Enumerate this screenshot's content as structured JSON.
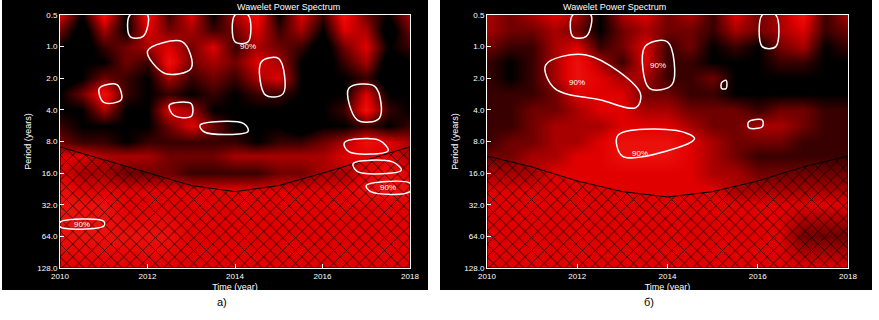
{
  "chart_data": [
    {
      "type": "heatmap",
      "title": "Wawelet Power Spectrum",
      "caption": "а)",
      "x_label": "Time (year)",
      "y_label": "Period (years)",
      "log": "y",
      "grid": false,
      "xlim": [
        2010,
        2018
      ],
      "xticks": [
        2010,
        2012,
        2014,
        2016,
        2018
      ],
      "ylim": [
        0.5,
        128
      ],
      "yticks": [
        0.5,
        {
          "value": 1,
          "label": "1.0"
        },
        {
          "value": 2,
          "label": "2.0"
        },
        {
          "value": 4,
          "label": "4.0"
        },
        {
          "value": 8,
          "label": "8.0"
        },
        {
          "value": 16,
          "label": "16.0"
        },
        {
          "value": 32,
          "label": "32.0"
        },
        {
          "value": 64,
          "label": "64.0"
        },
        {
          "value": 128,
          "label": "128.0"
        }
      ],
      "zlim": [
        0,
        1
      ],
      "x": [
        2010,
        2010.5,
        2011,
        2011.5,
        2012,
        2012.5,
        2013,
        2013.5,
        2014,
        2014.5,
        2015,
        2015.5,
        2016,
        2016.5,
        2017,
        2017.5,
        2018
      ],
      "y": [
        0.5,
        0.7,
        1,
        1.4,
        2,
        2.8,
        4,
        5.7,
        8,
        11,
        16,
        23,
        32,
        64,
        128
      ],
      "z": [
        [
          0.7,
          0.3,
          0.8,
          0.3,
          0.8,
          0.4,
          0.7,
          0.3,
          0.6,
          0.8,
          0.3,
          0.7,
          0.4,
          0.8,
          0.5,
          0.3,
          0.6
        ],
        [
          0.5,
          0.2,
          0.6,
          0.3,
          0.7,
          0.5,
          0.6,
          0.4,
          0.5,
          0.7,
          0.4,
          0.6,
          0.3,
          0.7,
          0.6,
          0.2,
          0.5
        ],
        [
          0.3,
          0.2,
          0.4,
          0.5,
          0.6,
          0.7,
          0.5,
          0.7,
          0.4,
          0.6,
          0.5,
          0.4,
          0.2,
          0.5,
          0.7,
          0.3,
          0.4
        ],
        [
          0.2,
          0.3,
          0.3,
          0.5,
          0.4,
          0.8,
          0.5,
          0.6,
          0.5,
          0.7,
          0.6,
          0.3,
          0.2,
          0.4,
          0.6,
          0.2,
          0.3
        ],
        [
          0.2,
          0.3,
          0.5,
          0.4,
          0.3,
          0.6,
          0.4,
          0.5,
          0.4,
          0.6,
          0.7,
          0.3,
          0.3,
          0.3,
          0.4,
          0.2,
          0.3
        ],
        [
          0.3,
          0.5,
          0.8,
          0.4,
          0.3,
          0.4,
          0.3,
          0.4,
          0.3,
          0.4,
          0.4,
          0.3,
          0.3,
          0.3,
          0.7,
          0.3,
          0.3
        ],
        [
          0.3,
          0.3,
          0.6,
          0.3,
          0.3,
          0.7,
          0.6,
          0.3,
          0.3,
          0.3,
          0.3,
          0.2,
          0.3,
          0.4,
          0.8,
          0.4,
          0.3
        ],
        [
          0.4,
          0.3,
          0.3,
          0.3,
          0.3,
          0.5,
          0.7,
          0.5,
          0.3,
          0.3,
          0.3,
          0.2,
          0.3,
          0.3,
          0.4,
          0.3,
          0.4
        ],
        [
          0.5,
          0.4,
          0.4,
          0.3,
          0.4,
          0.4,
          0.4,
          0.4,
          0.4,
          0.3,
          0.4,
          0.4,
          0.5,
          0.6,
          0.8,
          0.7,
          0.6
        ],
        [
          0.7,
          0.7,
          0.6,
          0.6,
          0.6,
          0.5,
          0.5,
          0.5,
          0.6,
          0.6,
          0.6,
          0.6,
          0.6,
          0.7,
          0.7,
          0.7,
          0.6
        ],
        [
          0.7,
          0.6,
          0.6,
          0.5,
          0.5,
          0.5,
          0.4,
          0.4,
          0.4,
          0.4,
          0.5,
          0.5,
          0.6,
          0.6,
          0.7,
          0.8,
          0.7
        ],
        [
          0.8,
          0.7,
          0.7,
          0.7,
          0.7,
          0.7,
          0.7,
          0.7,
          0.7,
          0.7,
          0.7,
          0.7,
          0.7,
          0.7,
          0.8,
          0.8,
          0.8
        ],
        [
          0.8,
          0.8,
          0.8,
          0.7,
          0.7,
          0.7,
          0.7,
          0.7,
          0.7,
          0.7,
          0.7,
          0.7,
          0.7,
          0.7,
          0.7,
          0.7,
          0.7
        ],
        [
          0.8,
          0.8,
          0.8,
          0.8,
          0.8,
          0.8,
          0.7,
          0.7,
          0.7,
          0.7,
          0.7,
          0.7,
          0.7,
          0.7,
          0.7,
          0.7,
          0.7
        ],
        [
          0.7,
          0.7,
          0.7,
          0.7,
          0.7,
          0.7,
          0.7,
          0.7,
          0.7,
          0.7,
          0.7,
          0.7,
          0.7,
          0.7,
          0.7,
          0.7,
          0.7
        ]
      ],
      "coi": {
        "x": [
          2010,
          2011,
          2012,
          2013,
          2014,
          2015,
          2016,
          2017,
          2018
        ],
        "y": [
          9,
          12,
          16,
          21,
          24,
          21,
          16,
          12,
          9
        ]
      },
      "significance": [
        [
          [
            2010.9,
            2.5
          ],
          [
            2011.3,
            2.3
          ],
          [
            2011.4,
            3.2
          ],
          [
            2011.0,
            3.4
          ],
          [
            2010.9,
            2.5
          ]
        ],
        [
          [
            2012.0,
            1.1
          ],
          [
            2012.8,
            0.9
          ],
          [
            2013.0,
            1.6
          ],
          [
            2012.4,
            1.8
          ],
          [
            2012.0,
            1.1
          ]
        ],
        [
          [
            2014.6,
            1.4
          ],
          [
            2015.0,
            1.3
          ],
          [
            2015.1,
            2.8
          ],
          [
            2014.7,
            2.9
          ],
          [
            2014.6,
            1.4
          ]
        ],
        [
          [
            2016.6,
            2.5
          ],
          [
            2017.2,
            2.4
          ],
          [
            2017.3,
            4.8
          ],
          [
            2016.8,
            5.0
          ],
          [
            2016.6,
            2.5
          ]
        ],
        [
          [
            2012.5,
            3.6
          ],
          [
            2013.0,
            3.5
          ],
          [
            2013.0,
            4.6
          ],
          [
            2012.6,
            4.5
          ],
          [
            2012.5,
            3.6
          ]
        ],
        [
          [
            2013.2,
            5.6
          ],
          [
            2014.2,
            5.4
          ],
          [
            2014.3,
            6.4
          ],
          [
            2013.3,
            6.5
          ],
          [
            2013.2,
            5.6
          ]
        ],
        [
          [
            2016.5,
            8.2
          ],
          [
            2017.3,
            7.8
          ],
          [
            2017.5,
            9.8
          ],
          [
            2016.6,
            10.0
          ],
          [
            2016.5,
            8.2
          ]
        ],
        [
          [
            2016.7,
            13
          ],
          [
            2017.6,
            12.5
          ],
          [
            2017.8,
            15
          ],
          [
            2016.8,
            15.5
          ],
          [
            2016.7,
            13
          ]
        ],
        [
          [
            2017.0,
            21
          ],
          [
            2018,
            20
          ],
          [
            2018,
            24
          ],
          [
            2017.1,
            24
          ],
          [
            2017.0,
            21
          ]
        ],
        [
          [
            2010,
            47
          ],
          [
            2011,
            46
          ],
          [
            2011,
            51
          ],
          [
            2010,
            52
          ],
          [
            2010,
            47
          ]
        ],
        [
          [
            2011.6,
            0.5
          ],
          [
            2012.0,
            0.5
          ],
          [
            2011.9,
            0.8
          ],
          [
            2011.6,
            0.8
          ],
          [
            2011.6,
            0.5
          ]
        ],
        [
          [
            2014.0,
            0.5
          ],
          [
            2014.3,
            0.5
          ],
          [
            2014.3,
            0.9
          ],
          [
            2014.0,
            0.9
          ],
          [
            2014.0,
            0.5
          ]
        ]
      ],
      "annotations": [
        {
          "text": "90%",
          "x": 2017.5,
          "y": 22
        },
        {
          "text": "90%",
          "x": 2010.5,
          "y": 49
        },
        {
          "text": "90%",
          "x": 2014.3,
          "y": 1.0
        }
      ]
    },
    {
      "type": "heatmap",
      "title": "Wawelet Power Spectrum",
      "caption": "б)",
      "x_label": "Time (year)",
      "y_label": "Period (years)",
      "log": "y",
      "grid": false,
      "xlim": [
        2010,
        2018
      ],
      "xticks": [
        2010,
        2012,
        2014,
        2016,
        2018
      ],
      "ylim": [
        0.5,
        128
      ],
      "yticks": [
        0.5,
        {
          "value": 1,
          "label": "1.0"
        },
        {
          "value": 2,
          "label": "2.0"
        },
        {
          "value": 4,
          "label": "4.0"
        },
        {
          "value": 8,
          "label": "8.0"
        },
        {
          "value": 16,
          "label": "16.0"
        },
        {
          "value": 32,
          "label": "32.0"
        },
        {
          "value": 64,
          "label": "64.0"
        },
        {
          "value": 128,
          "label": "128.0"
        }
      ],
      "zlim": [
        0,
        1
      ],
      "x": [
        2010,
        2010.5,
        2011,
        2011.5,
        2012,
        2012.5,
        2013,
        2013.5,
        2014,
        2014.5,
        2015,
        2015.5,
        2016,
        2016.5,
        2017,
        2017.5,
        2018
      ],
      "y": [
        0.5,
        0.7,
        1,
        1.4,
        2,
        2.8,
        4,
        5.7,
        8,
        11,
        16,
        23,
        32,
        64,
        128
      ],
      "z": [
        [
          0.6,
          0.5,
          0.6,
          0.7,
          0.6,
          0.3,
          0.6,
          0.7,
          0.5,
          0.6,
          0.4,
          0.7,
          0.5,
          0.6,
          0.8,
          0.4,
          0.6
        ],
        [
          0.6,
          0.5,
          0.5,
          0.6,
          0.5,
          0.3,
          0.5,
          0.6,
          0.5,
          0.5,
          0.4,
          0.6,
          0.5,
          0.6,
          0.7,
          0.4,
          0.5
        ],
        [
          0.5,
          0.4,
          0.4,
          0.6,
          0.7,
          0.4,
          0.5,
          0.7,
          0.4,
          0.5,
          0.3,
          0.4,
          0.3,
          0.5,
          0.6,
          0.3,
          0.4
        ],
        [
          0.4,
          0.3,
          0.4,
          0.6,
          0.8,
          0.6,
          0.4,
          0.7,
          0.4,
          0.4,
          0.3,
          0.3,
          0.3,
          0.4,
          0.4,
          0.3,
          0.3
        ],
        [
          0.4,
          0.3,
          0.4,
          0.6,
          0.8,
          0.7,
          0.6,
          0.6,
          0.4,
          0.4,
          0.5,
          0.3,
          0.3,
          0.3,
          0.3,
          0.3,
          0.3
        ],
        [
          0.4,
          0.4,
          0.4,
          0.5,
          0.7,
          0.7,
          0.7,
          0.5,
          0.5,
          0.4,
          0.4,
          0.3,
          0.3,
          0.3,
          0.3,
          0.3,
          0.3
        ],
        [
          0.4,
          0.4,
          0.5,
          0.5,
          0.6,
          0.7,
          0.7,
          0.6,
          0.6,
          0.5,
          0.5,
          0.5,
          0.4,
          0.5,
          0.5,
          0.4,
          0.4
        ],
        [
          0.4,
          0.4,
          0.5,
          0.6,
          0.6,
          0.6,
          0.7,
          0.7,
          0.7,
          0.6,
          0.5,
          0.5,
          0.6,
          0.6,
          0.5,
          0.4,
          0.4
        ],
        [
          0.4,
          0.5,
          0.5,
          0.6,
          0.6,
          0.7,
          0.8,
          0.8,
          0.8,
          0.7,
          0.6,
          0.5,
          0.5,
          0.5,
          0.4,
          0.4,
          0.4
        ],
        [
          0.5,
          0.5,
          0.6,
          0.6,
          0.7,
          0.7,
          0.8,
          0.8,
          0.8,
          0.7,
          0.6,
          0.5,
          0.4,
          0.4,
          0.4,
          0.4,
          0.4
        ],
        [
          0.6,
          0.6,
          0.6,
          0.7,
          0.7,
          0.7,
          0.7,
          0.7,
          0.7,
          0.7,
          0.6,
          0.6,
          0.5,
          0.5,
          0.5,
          0.5,
          0.5
        ],
        [
          0.7,
          0.7,
          0.7,
          0.7,
          0.7,
          0.7,
          0.7,
          0.7,
          0.7,
          0.7,
          0.7,
          0.6,
          0.6,
          0.6,
          0.6,
          0.6,
          0.6
        ],
        [
          0.7,
          0.7,
          0.7,
          0.7,
          0.7,
          0.7,
          0.7,
          0.7,
          0.7,
          0.7,
          0.7,
          0.7,
          0.7,
          0.7,
          0.7,
          0.7,
          0.7
        ],
        [
          0.7,
          0.7,
          0.7,
          0.7,
          0.7,
          0.7,
          0.7,
          0.7,
          0.7,
          0.7,
          0.7,
          0.7,
          0.7,
          0.7,
          0.5,
          0.5,
          0.5
        ],
        [
          0.7,
          0.7,
          0.7,
          0.7,
          0.7,
          0.7,
          0.7,
          0.7,
          0.7,
          0.7,
          0.7,
          0.7,
          0.7,
          0.7,
          0.7,
          0.7,
          0.7
        ]
      ],
      "coi": {
        "x": [
          2010,
          2011,
          2012,
          2013,
          2014,
          2015,
          2016,
          2017,
          2018
        ],
        "y": [
          11,
          14,
          19,
          24,
          27,
          24,
          19,
          14,
          11
        ]
      },
      "significance": [
        [
          [
            2011.3,
            1.5
          ],
          [
            2012.2,
            1.2
          ],
          [
            2013.4,
            2.8
          ],
          [
            2013.3,
            3.8
          ],
          [
            2012.5,
            3.2
          ],
          [
            2011.5,
            2.5
          ],
          [
            2011.3,
            1.5
          ]
        ],
        [
          [
            2013.5,
            1.0
          ],
          [
            2014.0,
            0.9
          ],
          [
            2014.1,
            2.3
          ],
          [
            2013.6,
            2.5
          ],
          [
            2013.5,
            1.0
          ]
        ],
        [
          [
            2012.9,
            7.0
          ],
          [
            2014.2,
            6.3
          ],
          [
            2014.6,
            7.5
          ],
          [
            2014.0,
            9.8
          ],
          [
            2013.0,
            11.0
          ],
          [
            2012.9,
            7.0
          ]
        ],
        [
          [
            2015.8,
            5.2
          ],
          [
            2016.1,
            5.0
          ],
          [
            2016.1,
            5.8
          ],
          [
            2015.8,
            5.9
          ],
          [
            2015.8,
            5.2
          ]
        ],
        [
          [
            2015.2,
            2.2
          ],
          [
            2015.3,
            2.1
          ],
          [
            2015.3,
            2.5
          ],
          [
            2015.2,
            2.5
          ],
          [
            2015.2,
            2.2
          ]
        ],
        [
          [
            2011.9,
            0.5
          ],
          [
            2012.3,
            0.5
          ],
          [
            2012.2,
            0.8
          ],
          [
            2011.9,
            0.8
          ],
          [
            2011.9,
            0.5
          ]
        ],
        [
          [
            2016.1,
            0.5
          ],
          [
            2016.4,
            0.5
          ],
          [
            2016.4,
            1.0
          ],
          [
            2016.1,
            1.0
          ],
          [
            2016.1,
            0.5
          ]
        ]
      ],
      "annotations": [
        {
          "text": "90%",
          "x": 2013.4,
          "y": 10.5
        },
        {
          "text": "90%",
          "x": 2012.0,
          "y": 2.2
        },
        {
          "text": "90%",
          "x": 2013.8,
          "y": 1.5
        }
      ]
    }
  ]
}
